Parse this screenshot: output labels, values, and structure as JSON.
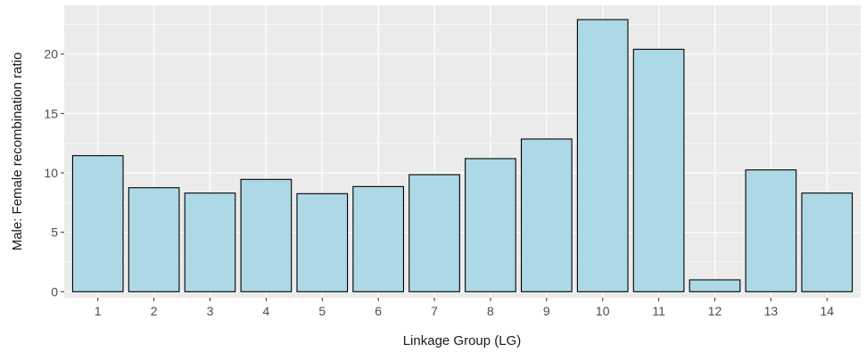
{
  "chart_data": {
    "type": "bar",
    "title": "",
    "xlabel": "Linkage Group (LG)",
    "ylabel": "Male: Female recombination ratio",
    "categories": [
      "1",
      "2",
      "3",
      "4",
      "5",
      "6",
      "7",
      "8",
      "9",
      "10",
      "11",
      "12",
      "13",
      "14"
    ],
    "values": [
      11.45,
      8.75,
      8.3,
      9.45,
      8.25,
      8.85,
      9.85,
      11.2,
      12.85,
      22.9,
      20.4,
      1.0,
      10.25,
      8.3
    ],
    "ylim": [
      -0.5,
      24.1
    ],
    "yticks": [
      0,
      5,
      10,
      15,
      20
    ],
    "grid": true,
    "legend": "none",
    "colors": {
      "panel": "#ebebeb",
      "grid": "#ffffff",
      "bar_fill": "#add8e6",
      "bar_stroke": "#000000"
    }
  }
}
